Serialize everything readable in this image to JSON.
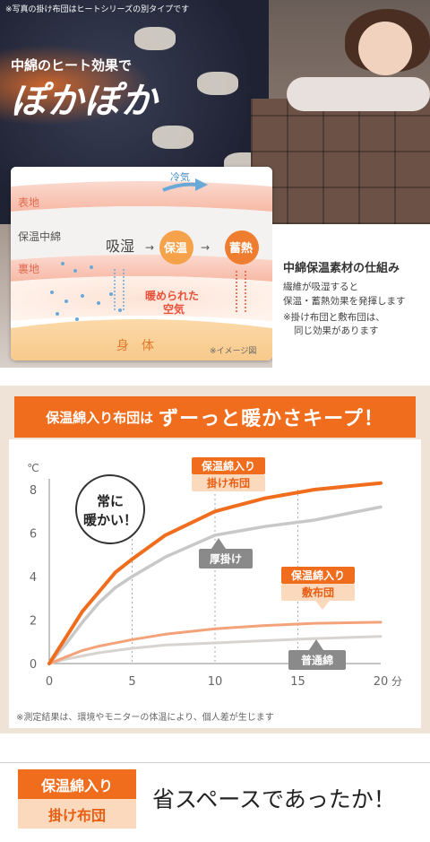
{
  "hero": {
    "note": "※写真の掛け布団はヒートシリーズの別タイプです",
    "catch_small": "中綿のヒート効果で",
    "catch_big": "ぽかぽか"
  },
  "diagram": {
    "cold_air": "冷気",
    "outer": "表地",
    "filling": "保温中綿",
    "lining": "裏地",
    "step1": "吸湿",
    "step2": "保温",
    "step3": "蓄熱",
    "warmed1": "暖められた",
    "warmed2": "空気",
    "body": "身　体",
    "image_note": "※イメージ図"
  },
  "explain": {
    "heading": "中綿保温素材の仕組み",
    "line1": "繊維が吸湿すると",
    "line2": "保温・蓄熱効果を発揮します",
    "line3": "※掛け布団と敷布団は、",
    "line4": "同じ効果があります"
  },
  "banner": {
    "small": "保温綿入り布団は",
    "big": "ずーっと暖かさキープ！"
  },
  "chart_data": {
    "type": "line",
    "x_unit": "分",
    "y_unit": "℃",
    "xlim": [
      0,
      20
    ],
    "ylim": [
      0,
      8
    ],
    "x_ticks": [
      "0",
      "5",
      "10",
      "15",
      "20"
    ],
    "y_ticks": [
      "0",
      "2",
      "4",
      "6",
      "8"
    ],
    "grid": "dotted verticals at 5, 10, 15",
    "series": [
      {
        "name": "保温綿入り 掛け布団",
        "color": "#f06d1e",
        "x": [
          0,
          1,
          2,
          3,
          4,
          5,
          7,
          10,
          13,
          16,
          20
        ],
        "y": [
          0,
          1.2,
          2.4,
          3.3,
          4.2,
          4.8,
          5.9,
          7.0,
          7.6,
          8.0,
          8.3
        ]
      },
      {
        "name": "厚掛け",
        "color": "#c8c8c8",
        "x": [
          0,
          1,
          2,
          3,
          4,
          5,
          7,
          10,
          13,
          16,
          20
        ],
        "y": [
          0,
          0.9,
          1.9,
          2.8,
          3.5,
          4.0,
          4.9,
          5.9,
          6.3,
          6.6,
          7.2
        ]
      },
      {
        "name": "保温綿入り 敷布団",
        "color": "#f3a27a",
        "x": [
          0,
          1,
          2,
          3,
          5,
          7,
          10,
          13,
          16,
          20
        ],
        "y": [
          0,
          0.3,
          0.6,
          0.8,
          1.1,
          1.35,
          1.6,
          1.75,
          1.85,
          1.9
        ]
      },
      {
        "name": "普通綿",
        "color": "#d8d3cf",
        "x": [
          0,
          1,
          2,
          3,
          5,
          7,
          10,
          13,
          16,
          20
        ],
        "y": [
          0,
          0.2,
          0.35,
          0.5,
          0.7,
          0.85,
          0.95,
          1.05,
          1.15,
          1.25
        ]
      }
    ],
    "labels": {
      "bubble1": "常に",
      "bubble2": "暖かい！",
      "kake_top": "保温綿入り",
      "kake_bottom": "掛け布団",
      "shiki_top": "保温綿入り",
      "shiki_bottom": "敷布団",
      "atsugake": "厚掛け",
      "futsuwata": "普通綿"
    }
  },
  "footnote": "※測定結果は、環境やモニターの体温により、個人差が生じます",
  "bottom": {
    "tag_top": "保温綿入り",
    "tag_bottom": "掛け布団",
    "copy": "省スペースであったか！"
  }
}
